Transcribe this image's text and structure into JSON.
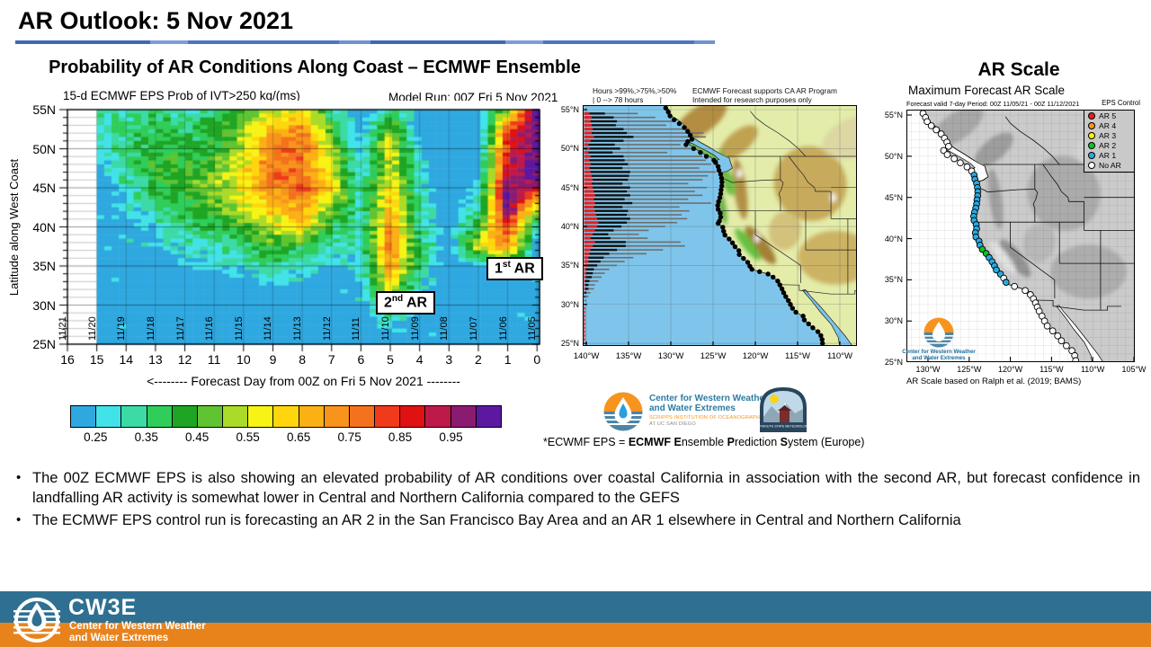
{
  "slide": {
    "title": "AR Outlook: 5 Nov 2021"
  },
  "headings": {
    "left": "Probability of AR Conditions Along Coast – ECMWF Ensemble",
    "right": "AR Scale"
  },
  "prob_chart": {
    "title": "15-d ECMWF EPS Prob of IVT>250 kg/(ms)",
    "model_run": "Model Run: 00Z Fri 5 Nov 2021",
    "ylabel": "Latitude along West Coast",
    "x_caption": "<-------- Forecast Day from 00Z on Fri 5 Nov 2021 --------",
    "lat_ticks": [
      "55N",
      "50N",
      "45N",
      "40N",
      "35N",
      "30N",
      "25N"
    ],
    "day_ticks": [
      "16",
      "15",
      "14",
      "13",
      "12",
      "11",
      "10",
      "9",
      "8",
      "7",
      "6",
      "5",
      "4",
      "3",
      "2",
      "1",
      "0"
    ],
    "date_ticks": [
      "11/21",
      "11/20",
      "11/19",
      "11/18",
      "11/17",
      "11/16",
      "11/15",
      "11/14",
      "11/13",
      "11/12",
      "11/11",
      "11/10",
      "11/09",
      "11/08",
      "11/07",
      "11/06",
      "11/05"
    ],
    "annotations": [
      {
        "base": "1",
        "sup": "st",
        "rest": " AR"
      },
      {
        "base": "2",
        "sup": "nd",
        "rest": " AR"
      }
    ]
  },
  "chart_data": [
    {
      "type": "heatmap",
      "title": "15-d ECMWF EPS Prob of IVT>250 kg/(ms)",
      "xlabel": "Forecast Day from 00Z on Fri 5 Nov 2021",
      "ylabel": "Latitude along West Coast",
      "x_days": [
        15,
        14,
        13,
        12,
        11,
        10,
        9,
        8,
        7,
        6,
        5,
        4,
        3,
        2,
        1,
        0
      ],
      "y_lats": [
        55,
        52.5,
        50,
        47.5,
        45,
        42.5,
        40,
        37.5,
        35,
        32.5,
        30,
        27.5,
        25
      ],
      "values": [
        [
          0.32,
          0.3,
          0.34,
          0.3,
          0.36,
          0.42,
          0.52,
          0.56,
          0.33,
          0.21,
          0.34,
          0.21,
          0.2,
          0.2,
          0.5,
          1.02
        ],
        [
          0.3,
          0.36,
          0.4,
          0.36,
          0.42,
          0.5,
          0.68,
          0.74,
          0.46,
          0.22,
          0.5,
          0.21,
          0.2,
          0.2,
          0.78,
          1.02
        ],
        [
          0.26,
          0.36,
          0.42,
          0.4,
          0.42,
          0.54,
          0.74,
          0.8,
          0.52,
          0.25,
          0.6,
          0.24,
          0.2,
          0.2,
          0.86,
          1.02
        ],
        [
          0.22,
          0.34,
          0.44,
          0.42,
          0.46,
          0.58,
          0.78,
          0.74,
          0.56,
          0.26,
          0.56,
          0.28,
          0.2,
          0.22,
          0.92,
          1.02
        ],
        [
          0.2,
          0.3,
          0.4,
          0.44,
          0.5,
          0.62,
          0.72,
          0.82,
          0.62,
          0.3,
          0.62,
          0.3,
          0.2,
          0.26,
          0.99,
          0.95
        ],
        [
          0.2,
          0.26,
          0.34,
          0.4,
          0.46,
          0.54,
          0.64,
          0.68,
          0.5,
          0.3,
          0.66,
          0.33,
          0.2,
          0.32,
          1.02,
          0.55
        ],
        [
          0.2,
          0.22,
          0.3,
          0.34,
          0.4,
          0.46,
          0.54,
          0.62,
          0.4,
          0.3,
          0.72,
          0.34,
          0.2,
          0.44,
          0.86,
          0.28
        ],
        [
          0.2,
          0.2,
          0.25,
          0.3,
          0.32,
          0.36,
          0.44,
          0.4,
          0.3,
          0.3,
          0.77,
          0.38,
          0.2,
          0.56,
          0.72,
          0.2
        ],
        [
          0.2,
          0.2,
          0.2,
          0.24,
          0.26,
          0.3,
          0.32,
          0.3,
          0.25,
          0.28,
          0.72,
          0.34,
          0.2,
          0.24,
          0.3,
          0.2
        ],
        [
          0.2,
          0.2,
          0.2,
          0.2,
          0.2,
          0.22,
          0.25,
          0.22,
          0.2,
          0.24,
          0.58,
          0.28,
          0.2,
          0.2,
          0.2,
          0.2
        ],
        [
          0.2,
          0.2,
          0.2,
          0.2,
          0.2,
          0.2,
          0.2,
          0.2,
          0.2,
          0.2,
          0.42,
          0.24,
          0.2,
          0.2,
          0.2,
          0.2
        ],
        [
          0.2,
          0.2,
          0.2,
          0.2,
          0.2,
          0.2,
          0.2,
          0.2,
          0.2,
          0.2,
          0.28,
          0.2,
          0.2,
          0.2,
          0.2,
          0.2
        ],
        [
          0.2,
          0.2,
          0.2,
          0.2,
          0.2,
          0.2,
          0.2,
          0.2,
          0.2,
          0.2,
          0.2,
          0.2,
          0.2,
          0.2,
          0.2,
          0.2
        ]
      ],
      "colorbar": {
        "bin_start": 0.2,
        "bin_step": 0.05,
        "tick_labels": [
          "0.25",
          "0.35",
          "0.45",
          "0.55",
          "0.65",
          "0.75",
          "0.85",
          "0.95"
        ],
        "colors": [
          "#2FA8E0",
          "#41E3E9",
          "#3CDAA5",
          "#2FCD5A",
          "#1FA524",
          "#60C331",
          "#AADB28",
          "#F7F314",
          "#FFD60E",
          "#FBB015",
          "#F8941B",
          "#F4711D",
          "#EF3A1C",
          "#DF1111",
          "#BD1A4B",
          "#8B1B71",
          "#5C18A0"
        ]
      },
      "annotations": [
        "1st AR near days 0-2 at 37-55N",
        "2nd AR near day 5 at 28-55N"
      ]
    },
    {
      "type": "bar",
      "name": "hours-above-probability-thresholds",
      "orientation": "horizontal",
      "units": "hours",
      "axis_max_hours": 78,
      "series_order": [
        ">99%",
        ">75%",
        ">50%"
      ],
      "series_colors": [
        "#E02020",
        "#111111",
        "#6E6E6E"
      ],
      "bars_lat_hours": [
        [
          54.5,
          5,
          14,
          30
        ],
        [
          54,
          7,
          20,
          38
        ],
        [
          53.5,
          6,
          24,
          52
        ],
        [
          53,
          7,
          22,
          46
        ],
        [
          52.5,
          8,
          28,
          60
        ],
        [
          52,
          7,
          32,
          70
        ],
        [
          51.5,
          9,
          36,
          66
        ],
        [
          51,
          6,
          30,
          62
        ],
        [
          50.5,
          4,
          24,
          60
        ],
        [
          50,
          5,
          28,
          66
        ],
        [
          49.5,
          4,
          22,
          50
        ],
        [
          49,
          6,
          30,
          72
        ],
        [
          48.5,
          5,
          32,
          74
        ],
        [
          48,
          6,
          34,
          76
        ],
        [
          47.5,
          5,
          30,
          70
        ],
        [
          47,
          6,
          36,
          78
        ],
        [
          46.5,
          7,
          34,
          72
        ],
        [
          46,
          8,
          32,
          68
        ],
        [
          45.5,
          7,
          28,
          60
        ],
        [
          45,
          8,
          34,
          70
        ],
        [
          44.5,
          9,
          30,
          62
        ],
        [
          44,
          10,
          32,
          66
        ],
        [
          43.5,
          9,
          28,
          58
        ],
        [
          43,
          10,
          34,
          72
        ],
        [
          42.5,
          9,
          26,
          52
        ],
        [
          42,
          10,
          30,
          56
        ],
        [
          41.5,
          11,
          28,
          50
        ],
        [
          41,
          12,
          30,
          52
        ],
        [
          40.5,
          13,
          26,
          46
        ],
        [
          40,
          12,
          22,
          40
        ],
        [
          39.5,
          10,
          17,
          32
        ],
        [
          39,
          8,
          14,
          28
        ],
        [
          38.5,
          6,
          18,
          34
        ],
        [
          38,
          10,
          28,
          50
        ],
        [
          37.5,
          8,
          30,
          54
        ],
        [
          37,
          6,
          24,
          42
        ],
        [
          36.5,
          5,
          18,
          34
        ],
        [
          36,
          4,
          14,
          27
        ],
        [
          35.5,
          4,
          11,
          22
        ],
        [
          35,
          3,
          9,
          18
        ],
        [
          34.5,
          2,
          7,
          14
        ],
        [
          34,
          2,
          6,
          11
        ],
        [
          33.5,
          2,
          5,
          9
        ],
        [
          33,
          1,
          4,
          8
        ],
        [
          32.5,
          1,
          3,
          6
        ],
        [
          32,
          1,
          3,
          5
        ],
        [
          31.5,
          0,
          2,
          4
        ],
        [
          31,
          0,
          1,
          3
        ],
        [
          30.5,
          0,
          0,
          2
        ],
        [
          30,
          0,
          0,
          1.5
        ],
        [
          29.5,
          0.6,
          0,
          0
        ],
        [
          29,
          0.6,
          0,
          0
        ],
        [
          28.5,
          0.6,
          0,
          0
        ],
        [
          28,
          0.6,
          0,
          0
        ],
        [
          27.5,
          0.6,
          0,
          0
        ],
        [
          27,
          0.6,
          0,
          0
        ],
        [
          26.5,
          0.6,
          0,
          0
        ],
        [
          26,
          0.6,
          0,
          0
        ],
        [
          25.5,
          0.6,
          0,
          0
        ]
      ]
    },
    {
      "type": "scatter",
      "name": "maximum-forecast-ar-scale-coastal-points",
      "category_colors": {
        "no": "#FFFFFF",
        "ar1": "#29ABE2",
        "ar2": "#0BC42B"
      },
      "points": [
        [
          55.2,
          "no"
        ],
        [
          54.7,
          "no"
        ],
        [
          54.2,
          "no"
        ],
        [
          53.7,
          "no"
        ],
        [
          53.2,
          "no"
        ],
        [
          52.7,
          "no"
        ],
        [
          52.2,
          "no"
        ],
        [
          51.7,
          "no"
        ],
        [
          51.2,
          "no"
        ],
        [
          50.7,
          "no"
        ],
        [
          50.2,
          "no"
        ],
        [
          49.7,
          "no"
        ],
        [
          49.2,
          "no"
        ],
        [
          48.7,
          "no"
        ],
        [
          48.2,
          "no"
        ],
        [
          47.7,
          "ar1"
        ],
        [
          47.2,
          "ar1"
        ],
        [
          46.7,
          "ar1"
        ],
        [
          46.2,
          "ar1"
        ],
        [
          45.7,
          "ar1"
        ],
        [
          45.2,
          "ar1"
        ],
        [
          44.7,
          "ar1"
        ],
        [
          44.2,
          "ar1"
        ],
        [
          43.7,
          "ar1"
        ],
        [
          43.2,
          "ar1"
        ],
        [
          42.7,
          "ar1"
        ],
        [
          42.2,
          "ar1"
        ],
        [
          41.7,
          "ar1"
        ],
        [
          41.2,
          "ar1"
        ],
        [
          40.7,
          "ar1"
        ],
        [
          40.2,
          "ar1"
        ],
        [
          39.7,
          "ar1"
        ],
        [
          39.2,
          "ar1"
        ],
        [
          38.7,
          "ar2"
        ],
        [
          38.2,
          "ar2"
        ],
        [
          37.7,
          "ar1"
        ],
        [
          37.2,
          "ar1"
        ],
        [
          36.7,
          "ar1"
        ],
        [
          36.2,
          "ar1"
        ],
        [
          35.7,
          "ar1"
        ],
        [
          35.2,
          "no"
        ],
        [
          34.7,
          "ar1"
        ],
        [
          34.2,
          "no"
        ],
        [
          33.7,
          "no"
        ],
        [
          33.2,
          "no"
        ],
        [
          32.7,
          "no"
        ],
        [
          32.2,
          "no"
        ],
        [
          31.7,
          "no"
        ],
        [
          31.2,
          "no"
        ],
        [
          30.6,
          "no"
        ],
        [
          30.0,
          "no"
        ],
        [
          29.4,
          "no"
        ],
        [
          28.8,
          "no"
        ],
        [
          28.2,
          "no"
        ],
        [
          27.6,
          "no"
        ],
        [
          27.0,
          "no"
        ],
        [
          26.4,
          "no"
        ],
        [
          25.8,
          "no"
        ],
        [
          25.2,
          "no"
        ]
      ]
    }
  ],
  "mid_map": {
    "hours_line1": "Hours >99%,>75%,>50%",
    "hours_line2": "| 0 --> 78 hours        |",
    "note_line1": "ECMWF Forecast supports CA AR Program",
    "note_line2": "Intended for research purposes only",
    "lat_labels": [
      "55°N",
      "50°N",
      "45°N",
      "40°N",
      "35°N",
      "30°N",
      "25°N"
    ],
    "lon_labels": [
      "140°W",
      "135°W",
      "130°W",
      "125°W",
      "120°W",
      "115°W",
      "110°W"
    ],
    "cw3e": {
      "line1": "Center for Western Weather",
      "line2": "and Water Extremes",
      "line3": "SCRIPPS INSTITUTION OF OCEANOGRAPHY",
      "line4": "AT UC SAN DIEGO"
    },
    "plymouth_caption": "PLYMOUTH STATE METEOROLOGY"
  },
  "ar_map": {
    "title": "Maximum Forecast AR Scale",
    "valid_line": "Forecast valid 7-day Period: 00Z 11/05/21 - 00Z 11/12/2021",
    "control_label": "EPS Control",
    "caption": "AR Scale based on Ralph et al. (2019; BAMS)",
    "lat_labels": [
      "55°N",
      "50°N",
      "45°N",
      "40°N",
      "35°N",
      "30°N",
      "25°N"
    ],
    "lon_labels": [
      "130°W",
      "125°W",
      "120°W",
      "115°W",
      "110°W",
      "105°W"
    ],
    "legend": [
      {
        "label": "AR 5",
        "color": "#EE1C25"
      },
      {
        "label": "AR 4",
        "color": "#F7941D"
      },
      {
        "label": "AR 3",
        "color": "#FFF200"
      },
      {
        "label": "AR 2",
        "color": "#0BC42B"
      },
      {
        "label": "AR 1",
        "color": "#29ABE2"
      },
      {
        "label": "No AR",
        "color": "#FFFFFF"
      }
    ],
    "logo_line1": "Center for Western Weather",
    "logo_line2": "and Water Extremes"
  },
  "footnote_segments": [
    {
      "t": "*ECWMF EPS = ",
      "b": false
    },
    {
      "t": "ECMWF",
      "b": true
    },
    {
      "t": " ",
      "b": false
    },
    {
      "t": "E",
      "b": true
    },
    {
      "t": "nsemble ",
      "b": false
    },
    {
      "t": "P",
      "b": true
    },
    {
      "t": "rediction ",
      "b": false
    },
    {
      "t": "S",
      "b": true
    },
    {
      "t": "ystem (Europe)",
      "b": false
    }
  ],
  "bullets": [
    "The 00Z ECMWF EPS is also showing an elevated probability of AR conditions over coastal California in association with the second AR, but forecast confidence in landfalling AR activity is somewhat lower in Central and Northern California compared to the GEFS",
    "The ECMWF EPS control run is forecasting an AR 2 in the San Francisco Bay Area and an AR 1 elsewhere in Central and Northern California"
  ],
  "footer": {
    "acronym": "CW3E",
    "line1": "Center for Western Weather",
    "line2": "and Water Extremes"
  }
}
